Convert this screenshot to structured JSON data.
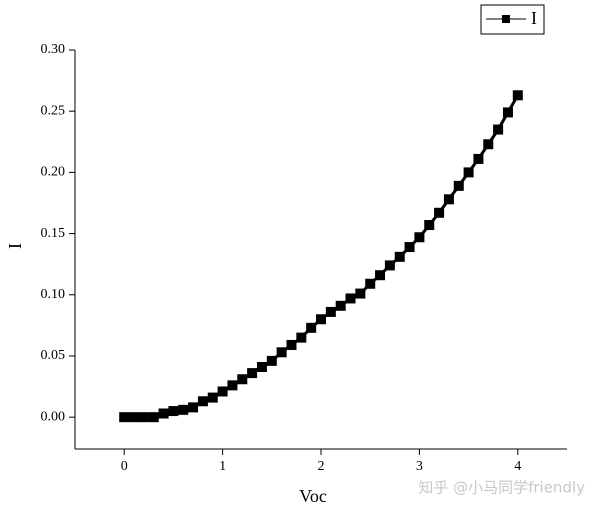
{
  "chart_data": {
    "type": "line",
    "x_label": "Voc",
    "y_label": "I",
    "x": [
      0,
      0.1,
      0.2,
      0.3,
      0.4,
      0.5,
      0.6,
      0.7,
      0.8,
      0.9,
      1.0,
      1.1,
      1.2,
      1.3,
      1.4,
      1.5,
      1.6,
      1.7,
      1.8,
      1.9,
      2.0,
      2.1,
      2.2,
      2.3,
      2.4,
      2.5,
      2.6,
      2.7,
      2.8,
      2.9,
      3.0,
      3.1,
      3.2,
      3.3,
      3.4,
      3.5,
      3.6,
      3.7,
      3.8,
      3.9,
      4.0
    ],
    "series": [
      {
        "name": "I",
        "color": "#000000",
        "values": [
          0,
          0,
          0,
          0,
          0.003,
          0.005,
          0.006,
          0.008,
          0.013,
          0.016,
          0.021,
          0.026,
          0.031,
          0.036,
          0.041,
          0.046,
          0.053,
          0.059,
          0.065,
          0.073,
          0.08,
          0.086,
          0.091,
          0.097,
          0.101,
          0.109,
          0.116,
          0.124,
          0.131,
          0.139,
          0.147,
          0.157,
          0.167,
          0.178,
          0.189,
          0.2,
          0.211,
          0.223,
          0.235,
          0.249,
          0.263
        ]
      }
    ],
    "xlim": [
      -0.5,
      4.5
    ],
    "xticks": [
      0,
      1,
      2,
      3,
      4
    ],
    "ylim": [
      -0.026,
      0.3
    ],
    "yticks": [
      {
        "value": 0,
        "label": "0.00"
      },
      {
        "value": 0.05,
        "label": "0.05"
      },
      {
        "value": 0.1,
        "label": "0.10"
      },
      {
        "value": 0.15,
        "label": "0.15"
      },
      {
        "value": 0.2,
        "label": "0.20"
      },
      {
        "value": 0.25,
        "label": "0.25"
      },
      {
        "value": 0.3,
        "label": "0.30"
      }
    ],
    "legend": "top-right",
    "watermark": "知乎 @小马同学friendly"
  }
}
